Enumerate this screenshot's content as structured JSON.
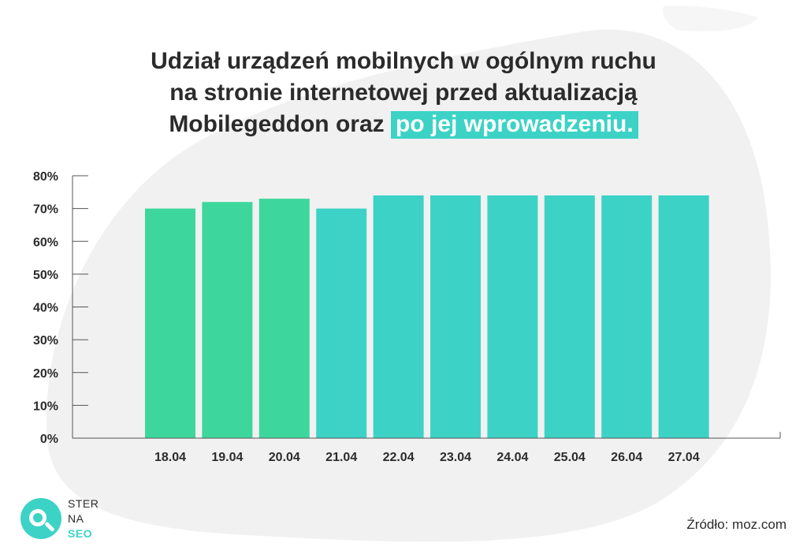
{
  "title": {
    "line1": "Udział urządzeń mobilnych w ogólnym ruchu",
    "line2": "na stronie internetowej przed aktualizacją",
    "line3_prefix": "Mobilegeddon oraz",
    "line3_highlight": "po jej wprowadzeniu."
  },
  "colors": {
    "before": "#3dd79d",
    "after": "#3cd3c6",
    "text": "#2b2b2b",
    "background_shape": "#f1f1f1"
  },
  "chart_data": {
    "type": "bar",
    "categories": [
      "18.04",
      "19.04",
      "20.04",
      "21.04",
      "22.04",
      "23.04",
      "24.04",
      "25.04",
      "26.04",
      "27.04"
    ],
    "values": [
      70,
      72,
      73,
      70,
      74,
      74,
      74,
      74,
      74,
      74
    ],
    "bar_groups": [
      "before",
      "before",
      "before",
      "after",
      "after",
      "after",
      "after",
      "after",
      "after",
      "after"
    ],
    "ylim": [
      0,
      80
    ],
    "yticks": [
      "0%",
      "10%",
      "20%",
      "30%",
      "40%",
      "50%",
      "60%",
      "70%",
      "80%"
    ],
    "title": "Udział urządzeń mobilnych w ogólnym ruchu na stronie internetowej przed aktualizacją Mobilegeddon oraz po jej wprowadzeniu.",
    "xlabel": "",
    "ylabel": ""
  },
  "logo": {
    "line1": "STER",
    "line2": "NA",
    "line3": "SEO"
  },
  "source": "Źródło: moz.com"
}
